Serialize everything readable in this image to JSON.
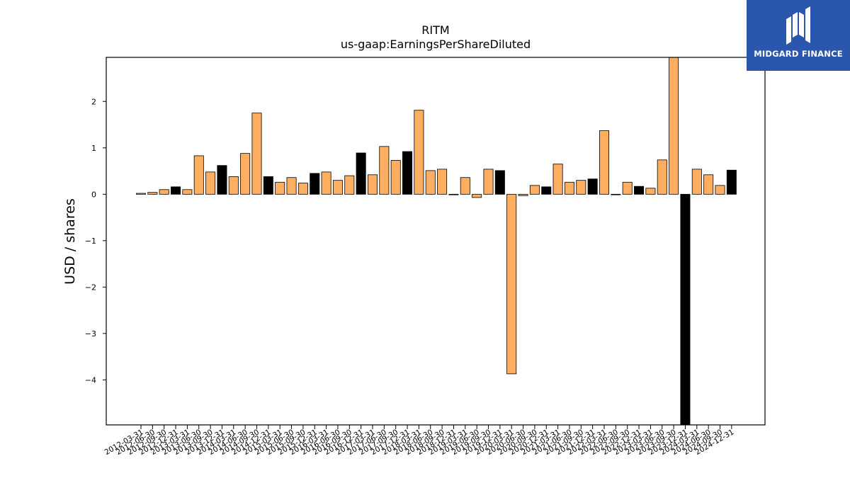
{
  "chart_data": {
    "type": "bar",
    "title": "RITM",
    "subtitle": "us-gaap:EarningsPerShareDiluted",
    "xlabel": "",
    "ylabel": "USD / shares",
    "ylim": [
      -4.97,
      2.95
    ],
    "yticks": [
      -4,
      -3,
      -2,
      -1,
      0,
      1,
      2
    ],
    "ytick_labels": [
      "−4",
      "−3",
      "−2",
      "−1",
      "0",
      "1",
      "2"
    ],
    "grid": false,
    "legend": "none",
    "colors": {
      "regular": "#fdae61",
      "highlight": "#000000",
      "edge": "#000000"
    },
    "categories": [
      "2012-03-31",
      "2012-06-30",
      "2012-09-30",
      "2012-12-31",
      "2013-03-31",
      "2013-06-30",
      "2013-09-30",
      "2013-12-31",
      "2014-03-31",
      "2014-06-30",
      "2014-09-30",
      "2014-12-31",
      "2015-03-31",
      "2015-06-30",
      "2015-09-30",
      "2015-12-31",
      "2016-03-31",
      "2016-06-30",
      "2016-09-30",
      "2016-12-31",
      "2017-03-31",
      "2017-06-30",
      "2017-09-30",
      "2017-12-31",
      "2018-03-31",
      "2018-06-30",
      "2018-09-30",
      "2018-12-31",
      "2019-03-31",
      "2019-06-30",
      "2019-09-30",
      "2019-12-31",
      "2020-03-31",
      "2020-06-30",
      "2020-09-30",
      "2020-12-31",
      "2021-03-31",
      "2021-06-30",
      "2021-09-30",
      "2021-12-31",
      "2022-03-31",
      "2022-06-30",
      "2022-09-30",
      "2022-12-31",
      "2023-03-31",
      "2023-06-30",
      "2023-09-30",
      "2023-12-31",
      "2024-03-31",
      "2024-06-30",
      "2024-09-30",
      "2024-12-31"
    ],
    "values": [
      0.02,
      0.04,
      0.1,
      0.16,
      0.1,
      0.83,
      0.48,
      0.62,
      0.38,
      0.88,
      1.75,
      0.38,
      0.26,
      0.36,
      0.24,
      0.45,
      0.48,
      0.3,
      0.4,
      0.89,
      0.42,
      1.03,
      0.73,
      0.92,
      1.81,
      0.51,
      0.54,
      0.0,
      0.36,
      -0.07,
      0.54,
      0.51,
      -3.87,
      -0.03,
      0.19,
      0.16,
      0.65,
      0.26,
      0.3,
      0.33,
      1.37,
      0.0,
      0.26,
      0.17,
      0.13,
      0.74,
      3.2,
      -5.2,
      0.54,
      0.42,
      0.19,
      0.52
    ],
    "highlight": [
      false,
      false,
      false,
      true,
      false,
      false,
      false,
      true,
      false,
      false,
      false,
      true,
      false,
      false,
      false,
      true,
      false,
      false,
      false,
      true,
      false,
      false,
      false,
      true,
      false,
      false,
      false,
      true,
      false,
      false,
      false,
      true,
      false,
      false,
      false,
      true,
      false,
      false,
      false,
      true,
      false,
      false,
      false,
      true,
      false,
      false,
      false,
      true,
      false,
      false,
      false,
      true
    ]
  },
  "logo": {
    "text": "MIDGARD FINANCE"
  }
}
